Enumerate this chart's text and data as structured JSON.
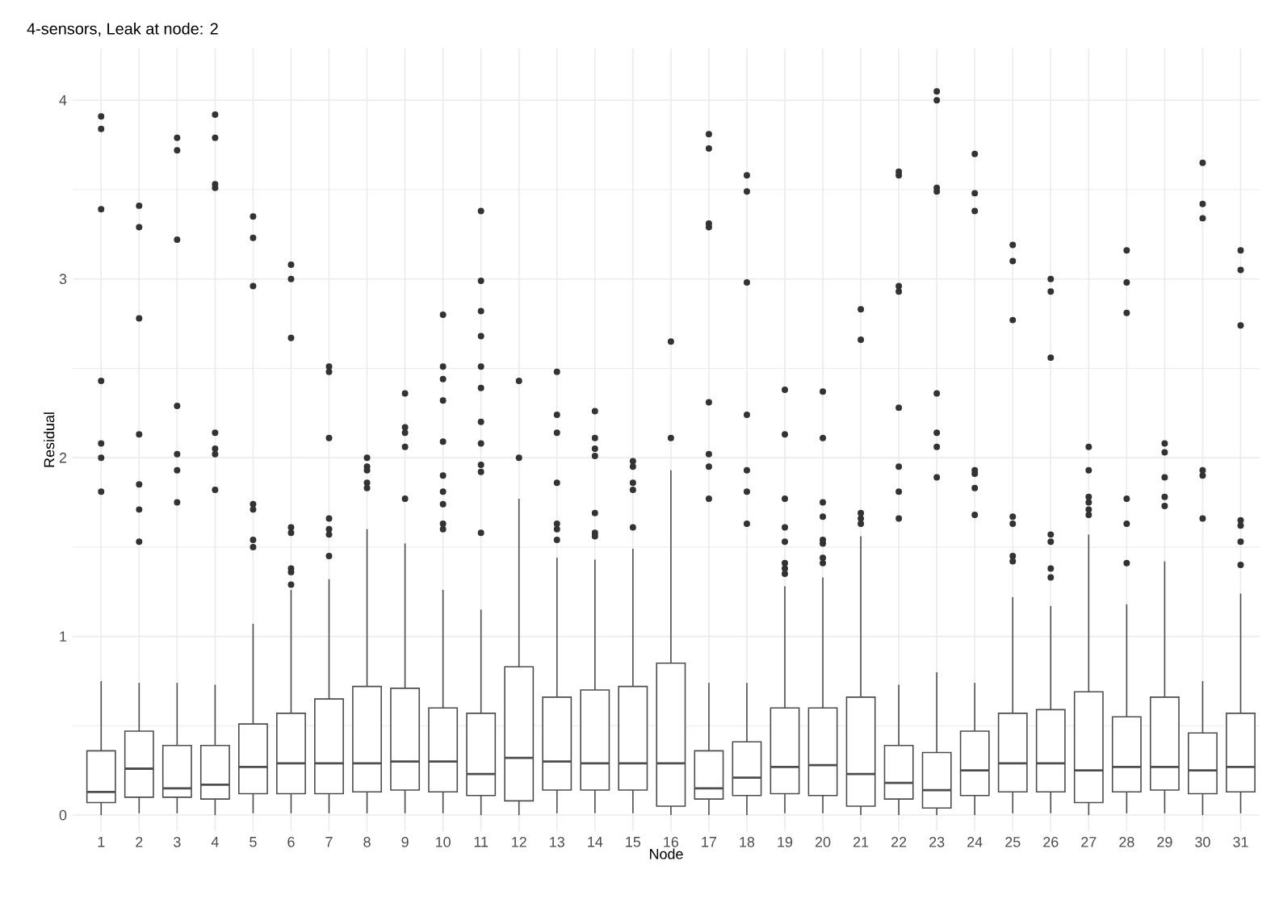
{
  "chart_data": {
    "type": "box",
    "title": "4-sensors, Leak at node: 2",
    "xlabel": "Node",
    "ylabel": "Residual",
    "categories": [
      "1",
      "2",
      "3",
      "4",
      "5",
      "6",
      "7",
      "8",
      "9",
      "10",
      "11",
      "12",
      "13",
      "14",
      "15",
      "16",
      "17",
      "18",
      "19",
      "20",
      "21",
      "22",
      "23",
      "24",
      "25",
      "26",
      "27",
      "28",
      "29",
      "30",
      "31"
    ],
    "color": "#4d4d4d",
    "ylim": [
      -0.09,
      4.29
    ],
    "yticks": [
      0,
      1,
      2,
      3,
      4
    ],
    "grid": true,
    "boxes": [
      {
        "low": 0.0,
        "q1": 0.07,
        "median": 0.13,
        "q3": 0.36,
        "high": 0.75,
        "outliers": [
          3.91,
          3.84,
          3.39,
          2.43,
          2.08,
          2.0,
          1.81
        ]
      },
      {
        "low": 0.01,
        "q1": 0.1,
        "median": 0.26,
        "q3": 0.47,
        "high": 0.74,
        "outliers": [
          3.41,
          3.29,
          2.78,
          2.13,
          1.85,
          1.71,
          1.53
        ]
      },
      {
        "low": 0.01,
        "q1": 0.1,
        "median": 0.15,
        "q3": 0.39,
        "high": 0.74,
        "outliers": [
          3.79,
          3.72,
          3.22,
          2.29,
          2.02,
          1.93,
          1.75
        ]
      },
      {
        "low": 0.0,
        "q1": 0.09,
        "median": 0.17,
        "q3": 0.39,
        "high": 0.73,
        "outliers": [
          3.92,
          3.79,
          3.53,
          3.51,
          2.14,
          2.05,
          2.02,
          1.82
        ]
      },
      {
        "low": 0.01,
        "q1": 0.12,
        "median": 0.27,
        "q3": 0.51,
        "high": 1.07,
        "outliers": [
          3.35,
          3.23,
          2.96,
          1.74,
          1.71,
          1.54,
          1.5
        ]
      },
      {
        "low": 0.01,
        "q1": 0.12,
        "median": 0.29,
        "q3": 0.57,
        "high": 1.26,
        "outliers": [
          3.08,
          3.0,
          2.67,
          1.61,
          1.58,
          1.38,
          1.36,
          1.29
        ]
      },
      {
        "low": 0.01,
        "q1": 0.12,
        "median": 0.29,
        "q3": 0.65,
        "high": 1.32,
        "outliers": [
          2.51,
          2.48,
          2.11,
          1.66,
          1.6,
          1.57,
          1.45
        ]
      },
      {
        "low": 0.01,
        "q1": 0.13,
        "median": 0.29,
        "q3": 0.72,
        "high": 1.6,
        "outliers": [
          2.0,
          1.95,
          1.93,
          1.86,
          1.83
        ]
      },
      {
        "low": 0.01,
        "q1": 0.14,
        "median": 0.3,
        "q3": 0.71,
        "high": 1.52,
        "outliers": [
          2.36,
          2.17,
          2.14,
          2.06,
          1.77
        ]
      },
      {
        "low": 0.01,
        "q1": 0.13,
        "median": 0.3,
        "q3": 0.6,
        "high": 1.26,
        "outliers": [
          2.8,
          2.51,
          2.44,
          2.32,
          2.09,
          1.9,
          1.81,
          1.74,
          1.63,
          1.6
        ]
      },
      {
        "low": 0.0,
        "q1": 0.11,
        "median": 0.23,
        "q3": 0.57,
        "high": 1.15,
        "outliers": [
          3.38,
          2.99,
          2.82,
          2.68,
          2.51,
          2.39,
          2.2,
          2.08,
          1.96,
          1.92,
          1.58
        ]
      },
      {
        "low": 0.0,
        "q1": 0.08,
        "median": 0.32,
        "q3": 0.83,
        "high": 1.77,
        "outliers": [
          2.43,
          2.0
        ]
      },
      {
        "low": 0.01,
        "q1": 0.14,
        "median": 0.3,
        "q3": 0.66,
        "high": 1.44,
        "outliers": [
          2.48,
          2.24,
          2.14,
          1.86,
          1.63,
          1.6,
          1.54
        ]
      },
      {
        "low": 0.01,
        "q1": 0.14,
        "median": 0.29,
        "q3": 0.7,
        "high": 1.43,
        "outliers": [
          2.26,
          2.11,
          2.05,
          2.01,
          1.69,
          1.58,
          1.56
        ]
      },
      {
        "low": 0.01,
        "q1": 0.14,
        "median": 0.29,
        "q3": 0.72,
        "high": 1.49,
        "outliers": [
          1.98,
          1.95,
          1.86,
          1.82,
          1.61
        ]
      },
      {
        "low": 0.0,
        "q1": 0.05,
        "median": 0.29,
        "q3": 0.85,
        "high": 1.93,
        "outliers": [
          2.65,
          2.11
        ]
      },
      {
        "low": 0.0,
        "q1": 0.09,
        "median": 0.15,
        "q3": 0.36,
        "high": 0.74,
        "outliers": [
          3.81,
          3.73,
          3.31,
          3.29,
          2.31,
          2.02,
          1.95,
          1.77
        ]
      },
      {
        "low": 0.0,
        "q1": 0.11,
        "median": 0.21,
        "q3": 0.41,
        "high": 0.74,
        "outliers": [
          3.58,
          3.49,
          2.98,
          2.24,
          1.93,
          1.81,
          1.63
        ]
      },
      {
        "low": 0.01,
        "q1": 0.12,
        "median": 0.27,
        "q3": 0.6,
        "high": 1.28,
        "outliers": [
          2.38,
          2.13,
          1.77,
          1.61,
          1.53,
          1.41,
          1.38,
          1.35
        ]
      },
      {
        "low": 0.01,
        "q1": 0.11,
        "median": 0.28,
        "q3": 0.6,
        "high": 1.33,
        "outliers": [
          2.37,
          2.11,
          1.75,
          1.67,
          1.54,
          1.52,
          1.44,
          1.41
        ]
      },
      {
        "low": 0.0,
        "q1": 0.05,
        "median": 0.23,
        "q3": 0.66,
        "high": 1.56,
        "outliers": [
          2.83,
          2.66,
          1.69,
          1.66,
          1.63
        ]
      },
      {
        "low": 0.0,
        "q1": 0.09,
        "median": 0.18,
        "q3": 0.39,
        "high": 0.73,
        "outliers": [
          3.6,
          3.58,
          2.96,
          2.93,
          2.28,
          1.95,
          1.81,
          1.66
        ]
      },
      {
        "low": 0.0,
        "q1": 0.04,
        "median": 0.14,
        "q3": 0.35,
        "high": 0.8,
        "outliers": [
          4.05,
          4.0,
          3.51,
          3.49,
          2.36,
          2.14,
          2.06,
          1.89
        ]
      },
      {
        "low": 0.0,
        "q1": 0.11,
        "median": 0.25,
        "q3": 0.47,
        "high": 0.74,
        "outliers": [
          3.7,
          3.48,
          3.38,
          1.93,
          1.91,
          1.83,
          1.68
        ]
      },
      {
        "low": 0.01,
        "q1": 0.13,
        "median": 0.29,
        "q3": 0.57,
        "high": 1.22,
        "outliers": [
          3.19,
          3.1,
          2.77,
          1.67,
          1.63,
          1.45,
          1.42
        ]
      },
      {
        "low": 0.01,
        "q1": 0.13,
        "median": 0.29,
        "q3": 0.59,
        "high": 1.17,
        "outliers": [
          3.0,
          2.93,
          2.56,
          1.57,
          1.53,
          1.38,
          1.33
        ]
      },
      {
        "low": 0.0,
        "q1": 0.07,
        "median": 0.25,
        "q3": 0.69,
        "high": 1.57,
        "outliers": [
          2.06,
          1.93,
          1.78,
          1.75,
          1.71,
          1.68
        ]
      },
      {
        "low": 0.01,
        "q1": 0.13,
        "median": 0.27,
        "q3": 0.55,
        "high": 1.18,
        "outliers": [
          3.16,
          2.98,
          2.81,
          1.77,
          1.63,
          1.41
        ]
      },
      {
        "low": 0.01,
        "q1": 0.14,
        "median": 0.27,
        "q3": 0.66,
        "high": 1.42,
        "outliers": [
          2.08,
          2.03,
          1.89,
          1.78,
          1.73
        ]
      },
      {
        "low": 0.0,
        "q1": 0.12,
        "median": 0.25,
        "q3": 0.46,
        "high": 0.75,
        "outliers": [
          3.65,
          3.42,
          3.34,
          1.93,
          1.9,
          1.66
        ]
      },
      {
        "low": 0.01,
        "q1": 0.13,
        "median": 0.27,
        "q3": 0.57,
        "high": 1.24,
        "outliers": [
          3.16,
          3.05,
          2.74,
          1.65,
          1.62,
          1.53,
          1.4
        ]
      }
    ]
  }
}
